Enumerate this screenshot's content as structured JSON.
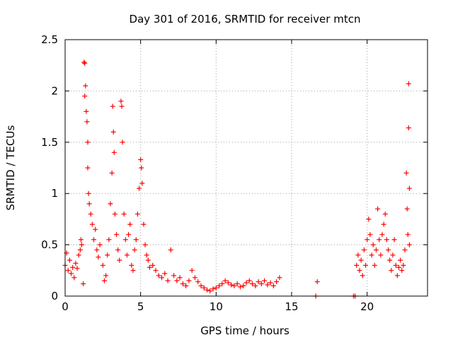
{
  "chart_data": {
    "type": "scatter",
    "title": "Day 301 of 2016, SRMTID for receiver mtcn",
    "xlabel": "GPS time / hours",
    "ylabel": "SRMTID / TECUs",
    "xlim": [
      0,
      24
    ],
    "ylim": [
      0,
      2.5
    ],
    "xticks": [
      0,
      5,
      10,
      15,
      20
    ],
    "xtick_labels": [
      "0",
      "5",
      "10",
      "15",
      "20"
    ],
    "yticks": [
      0,
      0.5,
      1,
      1.5,
      2,
      2.5
    ],
    "ytick_labels": [
      "0",
      "0.5",
      "1",
      "1.5",
      "2",
      "2.5"
    ],
    "grid": true,
    "marker": "+",
    "marker_color": "#ff0000",
    "series": [
      {
        "name": "SRMTID",
        "points": [
          [
            0.0,
            0.3
          ],
          [
            0.1,
            0.42
          ],
          [
            0.2,
            0.25
          ],
          [
            0.3,
            0.35
          ],
          [
            0.4,
            0.22
          ],
          [
            0.5,
            0.28
          ],
          [
            0.6,
            0.18
          ],
          [
            0.7,
            0.32
          ],
          [
            0.8,
            0.27
          ],
          [
            0.9,
            0.4
          ],
          [
            1.0,
            0.45
          ],
          [
            1.05,
            0.55
          ],
          [
            1.1,
            0.5
          ],
          [
            1.2,
            0.12
          ],
          [
            1.25,
            2.28
          ],
          [
            1.3,
            2.27
          ],
          [
            1.3,
            1.95
          ],
          [
            1.35,
            2.05
          ],
          [
            1.4,
            1.8
          ],
          [
            1.45,
            1.7
          ],
          [
            1.5,
            1.5
          ],
          [
            1.5,
            1.25
          ],
          [
            1.55,
            1.0
          ],
          [
            1.6,
            0.9
          ],
          [
            1.7,
            0.8
          ],
          [
            1.8,
            0.7
          ],
          [
            1.9,
            0.55
          ],
          [
            2.0,
            0.65
          ],
          [
            2.1,
            0.45
          ],
          [
            2.2,
            0.38
          ],
          [
            2.3,
            0.5
          ],
          [
            2.5,
            0.3
          ],
          [
            2.6,
            0.15
          ],
          [
            2.7,
            0.2
          ],
          [
            2.8,
            0.4
          ],
          [
            2.9,
            0.55
          ],
          [
            3.0,
            0.9
          ],
          [
            3.1,
            1.2
          ],
          [
            3.15,
            1.85
          ],
          [
            3.2,
            1.6
          ],
          [
            3.25,
            1.4
          ],
          [
            3.3,
            0.8
          ],
          [
            3.4,
            0.6
          ],
          [
            3.5,
            0.45
          ],
          [
            3.6,
            0.35
          ],
          [
            3.7,
            1.9
          ],
          [
            3.75,
            1.85
          ],
          [
            3.8,
            1.5
          ],
          [
            3.9,
            0.8
          ],
          [
            4.0,
            0.55
          ],
          [
            4.1,
            0.4
          ],
          [
            4.2,
            0.6
          ],
          [
            4.3,
            0.7
          ],
          [
            4.4,
            0.3
          ],
          [
            4.5,
            0.25
          ],
          [
            4.6,
            0.45
          ],
          [
            4.7,
            0.55
          ],
          [
            4.8,
            0.8
          ],
          [
            4.9,
            1.05
          ],
          [
            5.0,
            1.33
          ],
          [
            5.05,
            1.25
          ],
          [
            5.1,
            1.1
          ],
          [
            5.2,
            0.7
          ],
          [
            5.3,
            0.5
          ],
          [
            5.4,
            0.4
          ],
          [
            5.5,
            0.35
          ],
          [
            5.6,
            0.28
          ],
          [
            5.8,
            0.3
          ],
          [
            6.0,
            0.25
          ],
          [
            6.2,
            0.2
          ],
          [
            6.4,
            0.18
          ],
          [
            6.6,
            0.22
          ],
          [
            6.8,
            0.15
          ],
          [
            7.0,
            0.45
          ],
          [
            7.2,
            0.2
          ],
          [
            7.4,
            0.15
          ],
          [
            7.6,
            0.18
          ],
          [
            7.8,
            0.12
          ],
          [
            8.0,
            0.1
          ],
          [
            8.2,
            0.15
          ],
          [
            8.4,
            0.25
          ],
          [
            8.6,
            0.18
          ],
          [
            8.8,
            0.14
          ],
          [
            9.0,
            0.1
          ],
          [
            9.2,
            0.08
          ],
          [
            9.4,
            0.06
          ],
          [
            9.6,
            0.05
          ],
          [
            9.8,
            0.07
          ],
          [
            10.0,
            0.08
          ],
          [
            10.2,
            0.1
          ],
          [
            10.4,
            0.12
          ],
          [
            10.6,
            0.15
          ],
          [
            10.8,
            0.13
          ],
          [
            11.0,
            0.11
          ],
          [
            11.2,
            0.1
          ],
          [
            11.4,
            0.12
          ],
          [
            11.6,
            0.09
          ],
          [
            11.8,
            0.1
          ],
          [
            12.0,
            0.13
          ],
          [
            12.2,
            0.15
          ],
          [
            12.4,
            0.12
          ],
          [
            12.6,
            0.1
          ],
          [
            12.8,
            0.14
          ],
          [
            13.0,
            0.12
          ],
          [
            13.2,
            0.15
          ],
          [
            13.4,
            0.11
          ],
          [
            13.6,
            0.13
          ],
          [
            13.8,
            0.1
          ],
          [
            14.0,
            0.14
          ],
          [
            14.2,
            0.18
          ],
          [
            16.6,
            0.0
          ],
          [
            16.7,
            0.14
          ],
          [
            19.1,
            0.0
          ],
          [
            19.2,
            0.0
          ],
          [
            19.3,
            0.3
          ],
          [
            19.4,
            0.4
          ],
          [
            19.5,
            0.25
          ],
          [
            19.6,
            0.35
          ],
          [
            19.7,
            0.2
          ],
          [
            19.8,
            0.45
          ],
          [
            19.9,
            0.3
          ],
          [
            20.0,
            0.55
          ],
          [
            20.1,
            0.75
          ],
          [
            20.2,
            0.6
          ],
          [
            20.3,
            0.4
          ],
          [
            20.4,
            0.5
          ],
          [
            20.5,
            0.3
          ],
          [
            20.6,
            0.45
          ],
          [
            20.7,
            0.85
          ],
          [
            20.8,
            0.55
          ],
          [
            20.9,
            0.4
          ],
          [
            21.0,
            0.6
          ],
          [
            21.1,
            0.7
          ],
          [
            21.2,
            0.8
          ],
          [
            21.3,
            0.55
          ],
          [
            21.4,
            0.45
          ],
          [
            21.5,
            0.35
          ],
          [
            21.6,
            0.25
          ],
          [
            21.7,
            0.4
          ],
          [
            21.8,
            0.55
          ],
          [
            21.9,
            0.3
          ],
          [
            22.0,
            0.2
          ],
          [
            22.1,
            0.28
          ],
          [
            22.2,
            0.35
          ],
          [
            22.3,
            0.25
          ],
          [
            22.4,
            0.3
          ],
          [
            22.5,
            0.45
          ],
          [
            22.6,
            1.2
          ],
          [
            22.65,
            0.85
          ],
          [
            22.7,
            0.6
          ],
          [
            22.75,
            2.07
          ],
          [
            22.75,
            1.64
          ],
          [
            22.8,
            1.05
          ],
          [
            22.8,
            0.5
          ]
        ]
      }
    ]
  }
}
